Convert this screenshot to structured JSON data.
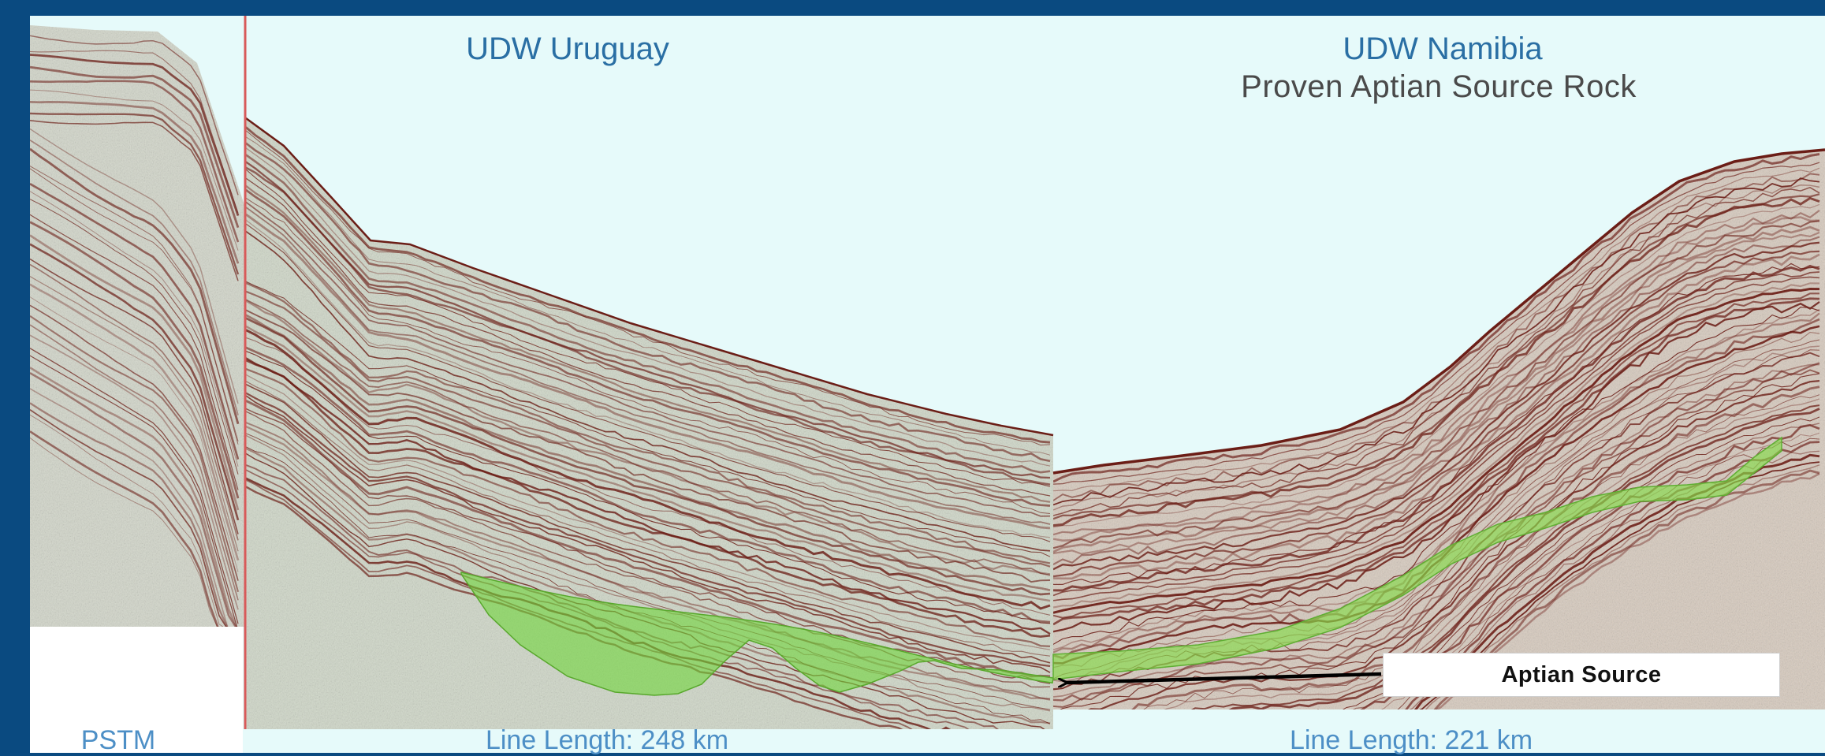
{
  "left_panel": {
    "title": "UDW Uruguay",
    "footer": "Line Length: 248 km",
    "processing_label": "PSTM"
  },
  "right_panel": {
    "title": "UDW Namibia",
    "subtitle": "Proven Aptian Source Rock",
    "footer": "Line Length: 221 km"
  },
  "annotation": {
    "label": "Aptian Source"
  },
  "colors": {
    "frame": "#0a4a80",
    "water": "#e6fafa",
    "sediment_left": "#cfd7c7",
    "sediment_right": "#d7cabd",
    "reflector": "#6b1d16",
    "source_rock": "#6fd63a",
    "title_blue": "#2a6fa4",
    "footer_blue": "#4d8fc6"
  }
}
